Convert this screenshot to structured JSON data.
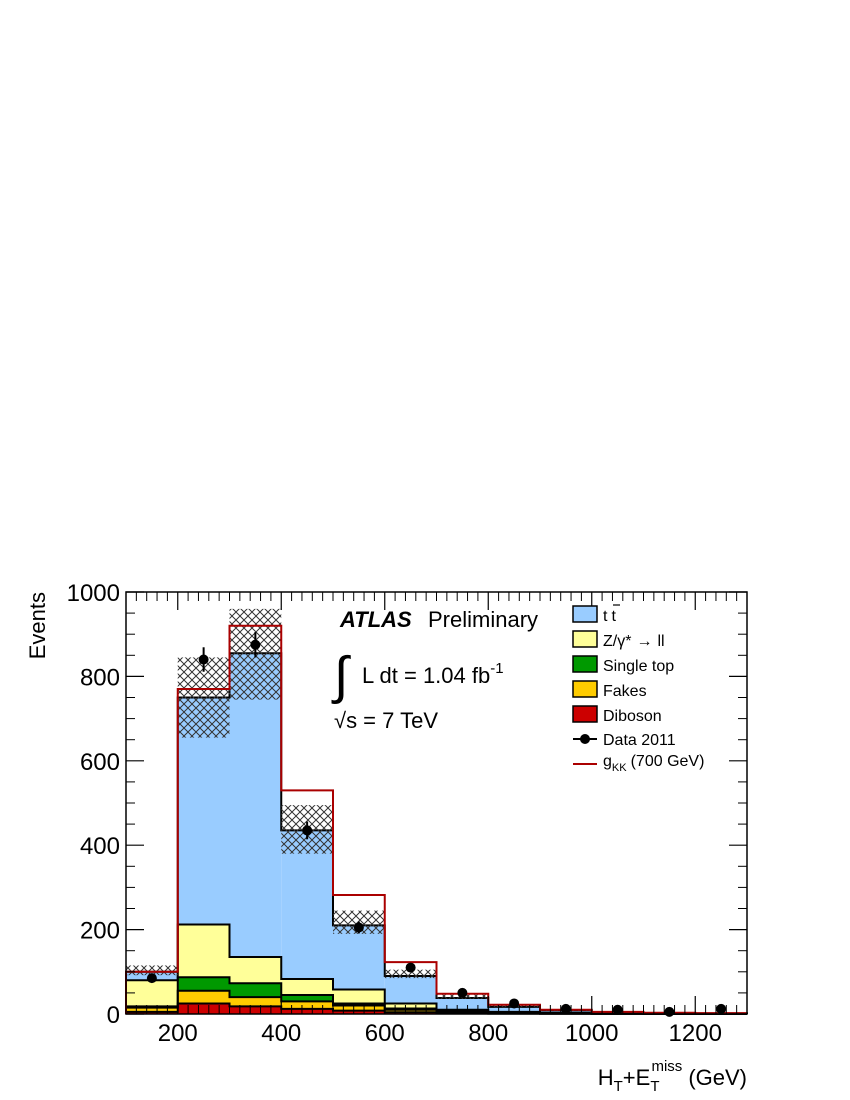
{
  "chart_data": {
    "type": "bar",
    "stacked": true,
    "xlabel_main": "H",
    "xlabel_sub1": "T",
    "xlabel_plus": "+E",
    "xlabel_sub2": "T",
    "xlabel_sup2": "miss",
    "xlabel_unit": "(GeV)",
    "ylabel": "Events",
    "xlim": [
      100,
      1300
    ],
    "ylim": [
      0,
      1000
    ],
    "xticks": [
      200,
      400,
      600,
      800,
      1000,
      1200
    ],
    "yticks": [
      0,
      200,
      400,
      600,
      800,
      1000
    ],
    "bin_edges": [
      100,
      200,
      300,
      400,
      500,
      600,
      700,
      800,
      900,
      1000,
      1100,
      1200,
      1300
    ],
    "series": [
      {
        "name": "Diboson",
        "color": "#cc0000",
        "values": [
          5,
          25,
          18,
          12,
          8,
          4,
          2,
          1,
          0.5,
          0.3,
          0.2,
          0.1
        ]
      },
      {
        "name": "Fakes",
        "color": "#ffcc00",
        "values": [
          10,
          30,
          22,
          18,
          12,
          6,
          3,
          1.5,
          0.5,
          0.3,
          0.2,
          0.2
        ]
      },
      {
        "name": "Single top",
        "color": "#009900",
        "values": [
          3,
          32,
          33,
          15,
          5,
          3,
          1,
          0.5,
          0.3,
          0.2,
          0.1,
          0.1
        ]
      },
      {
        "name": "Z/γ* → ll",
        "symbol_name": "Z/γ*",
        "arrow": "→",
        "tail": "ll",
        "color": "#ffff99",
        "values": [
          62,
          125,
          62,
          38,
          33,
          12,
          4,
          2,
          1,
          0.5,
          0.3,
          0.2
        ]
      },
      {
        "name": "t t̄",
        "symbol_name": "t",
        "tail": "t",
        "color": "#99ccff",
        "values": [
          20,
          538,
          720,
          352,
          152,
          65,
          28,
          12,
          6,
          3,
          1.5,
          1
        ]
      }
    ],
    "uncertainty_band": {
      "down": [
        92,
        655,
        745,
        380,
        190,
        85,
        36,
        16,
        7,
        3,
        1.5,
        1
      ],
      "up": [
        115,
        845,
        960,
        495,
        245,
        105,
        46,
        22,
        11,
        6,
        3,
        2
      ]
    },
    "signal": {
      "name": "g",
      "sub": "KK",
      "tail": "(700 GeV)",
      "color": "#aa0000",
      "values": [
        100,
        770,
        920,
        530,
        282,
        123,
        48,
        22,
        10,
        5,
        3,
        2
      ]
    },
    "data_points": {
      "name": "Data 2011",
      "x": [
        150,
        250,
        350,
        450,
        550,
        650,
        750,
        850,
        950,
        1050,
        1150,
        1250
      ],
      "y": [
        85,
        840,
        875,
        435,
        205,
        110,
        50,
        25,
        12,
        10,
        5,
        12
      ],
      "err": [
        9,
        29,
        30,
        21,
        14,
        10,
        7,
        5,
        3.5,
        3,
        2,
        3.5
      ]
    },
    "legend_position": "top-right",
    "annotations": {
      "atlas": "ATLAS",
      "preliminary": "Preliminary",
      "lumi_integral": "∫",
      "lumi_text": "L dt =  1.04  fb",
      "lumi_sup": "-1",
      "sqrt_text": "√s = 7 TeV"
    }
  }
}
